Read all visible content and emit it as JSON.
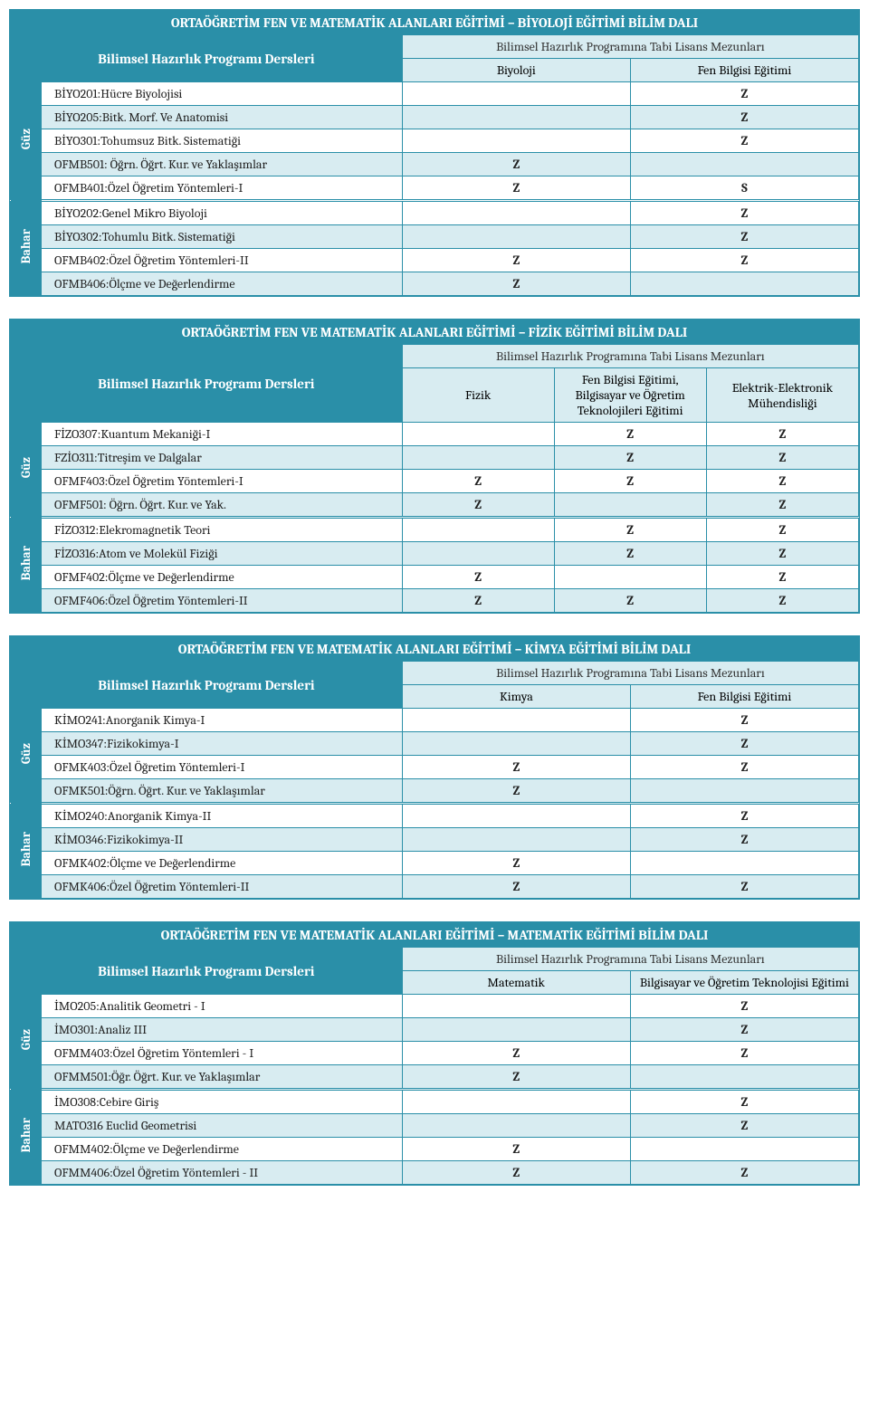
{
  "tables": [
    {
      "title": "ORTAÖĞRETİM FEN VE MATEMATİK ALANLARI EĞİTİMİ – BİYOLOJİ EĞİTİMİ BİLİM DALI",
      "left_label": "Bilimsel Hazırlık Programı Dersleri",
      "top_header": "Bilimsel Hazırlık Programına Tabi Lisans Mezunları",
      "columns": [
        "Biyoloji",
        "Fen Bilgisi Eğitimi"
      ],
      "semesters": [
        {
          "name": "Güz",
          "rows": [
            {
              "course": "BİYO201:Hücre Biyolojisi",
              "vals": [
                "",
                "Z"
              ]
            },
            {
              "course": "BİYO205:Bitk. Morf. Ve Anatomisi",
              "vals": [
                "",
                "Z"
              ]
            },
            {
              "course": "BİYO301:Tohumsuz Bitk. Sistematiği",
              "vals": [
                "",
                "Z"
              ]
            },
            {
              "course": "OFMB501: Öğrn. Öğrt. Kur. ve Yaklaşımlar",
              "vals": [
                "Z",
                ""
              ]
            },
            {
              "course": "OFMB401:Özel Öğretim Yöntemleri-I",
              "vals": [
                "Z",
                "S"
              ]
            }
          ]
        },
        {
          "name": "Bahar",
          "rows": [
            {
              "course": "BİYO202:Genel Mikro Biyoloji",
              "vals": [
                "",
                "Z"
              ]
            },
            {
              "course": "BİYO302:Tohumlu Bitk. Sistematiği",
              "vals": [
                "",
                "Z"
              ]
            },
            {
              "course": "OFMB402:Özel Öğretim Yöntemleri-II",
              "vals": [
                "Z",
                "Z"
              ]
            },
            {
              "course": "OFMB406:Ölçme ve Değerlendirme",
              "vals": [
                "Z",
                ""
              ]
            }
          ]
        }
      ]
    },
    {
      "title": "ORTAÖĞRETİM FEN VE MATEMATİK ALANLARI EĞİTİMİ – FİZİK EĞİTİMİ BİLİM DALI",
      "left_label": "Bilimsel Hazırlık Programı Dersleri",
      "top_header": "Bilimsel Hazırlık Programına Tabi Lisans Mezunları",
      "columns": [
        "Fizik",
        "Fen Bilgisi Eğitimi, Bilgisayar ve Öğretim Teknolojileri Eğitimi",
        "Elektrik-Elektronik Mühendisliği"
      ],
      "semesters": [
        {
          "name": "Güz",
          "rows": [
            {
              "course": "FİZO307:Kuantum Mekaniği-I",
              "vals": [
                "",
                "Z",
                "Z"
              ]
            },
            {
              "course": "FZİO311:Titreşim ve Dalgalar",
              "vals": [
                "",
                "Z",
                "Z"
              ]
            },
            {
              "course": "OFMF403:Özel Öğretim Yöntemleri-I",
              "vals": [
                "Z",
                "Z",
                "Z"
              ]
            },
            {
              "course": "OFMF501: Öğrn. Öğrt. Kur. ve Yak.",
              "vals": [
                "Z",
                "",
                "Z"
              ]
            }
          ]
        },
        {
          "name": "Bahar",
          "rows": [
            {
              "course": "FİZO312:Elekromagnetik Teori",
              "vals": [
                "",
                "Z",
                "Z"
              ]
            },
            {
              "course": "FİZO316:Atom ve Molekül Fiziği",
              "vals": [
                "",
                "Z",
                "Z"
              ]
            },
            {
              "course": "OFMF402:Ölçme ve Değerlendirme",
              "vals": [
                "Z",
                "",
                "Z"
              ]
            },
            {
              "course": "OFMF406:Özel Öğretim Yöntemleri-II",
              "vals": [
                "Z",
                "Z",
                "Z"
              ]
            }
          ]
        }
      ]
    },
    {
      "title": "ORTAÖĞRETİM FEN VE MATEMATİK ALANLARI EĞİTİMİ – KİMYA EĞİTİMİ BİLİM DALI",
      "left_label": "Bilimsel Hazırlık Programı Dersleri",
      "top_header": "Bilimsel Hazırlık Programına Tabi Lisans Mezunları",
      "columns": [
        "Kimya",
        "Fen Bilgisi Eğitimi"
      ],
      "semesters": [
        {
          "name": "Güz",
          "rows": [
            {
              "course": "KİMO241:Anorganik Kimya-I",
              "vals": [
                "",
                "Z"
              ]
            },
            {
              "course": "KİMO347:Fizikokimya-I",
              "vals": [
                "",
                "Z"
              ]
            },
            {
              "course": "OFMK403:Özel Öğretim Yöntemleri-I",
              "vals": [
                "Z",
                "Z"
              ]
            },
            {
              "course": "OFMK501:Öğrn. Öğrt. Kur. ve Yaklaşımlar",
              "vals": [
                "Z",
                ""
              ]
            }
          ]
        },
        {
          "name": "Bahar",
          "rows": [
            {
              "course": "KİMO240:Anorganik Kimya-II",
              "vals": [
                "",
                "Z"
              ]
            },
            {
              "course": "KİMO346:Fizikokimya-II",
              "vals": [
                "",
                "Z"
              ]
            },
            {
              "course": "OFMK402:Ölçme ve Değerlendirme",
              "vals": [
                "Z",
                ""
              ]
            },
            {
              "course": "OFMK406:Özel Öğretim Yöntemleri-II",
              "vals": [
                "Z",
                "Z"
              ]
            }
          ]
        }
      ]
    },
    {
      "title": "ORTAÖĞRETİM FEN VE MATEMATİK ALANLARI EĞİTİMİ – MATEMATİK EĞİTİMİ BİLİM DALI",
      "left_label": "Bilimsel Hazırlık Programı Dersleri",
      "top_header": "Bilimsel Hazırlık Programına Tabi Lisans Mezunları",
      "columns": [
        "Matematik",
        "Bilgisayar ve Öğretim Teknolojisi Eğitimi"
      ],
      "semesters": [
        {
          "name": "Güz",
          "rows": [
            {
              "course": "İMO205:Analitik Geometri - I",
              "vals": [
                "",
                "Z"
              ]
            },
            {
              "course": "İMO301:Analiz III",
              "vals": [
                "",
                "Z"
              ]
            },
            {
              "course": "OFMM403:Özel Öğretim Yöntemleri - I",
              "vals": [
                "Z",
                "Z"
              ]
            },
            {
              "course": "OFMM501:Öğr. Öğrt. Kur. ve Yaklaşımlar",
              "vals": [
                "Z",
                ""
              ]
            }
          ]
        },
        {
          "name": "Bahar",
          "rows": [
            {
              "course": "İMO308:Cebire Giriş",
              "vals": [
                "",
                "Z"
              ]
            },
            {
              "course": "MATO316 Euclid Geometrisi",
              "vals": [
                "",
                "Z"
              ]
            },
            {
              "course": "OFMM402:Ölçme ve Değerlendirme",
              "vals": [
                "Z",
                ""
              ]
            },
            {
              "course": "OFMM406:Özel Öğretim Yöntemleri - II",
              "vals": [
                "Z",
                "Z"
              ]
            }
          ]
        }
      ]
    }
  ],
  "colors": {
    "primary": "#2a8fa8",
    "light": "#d8ecf1",
    "white": "#ffffff"
  }
}
